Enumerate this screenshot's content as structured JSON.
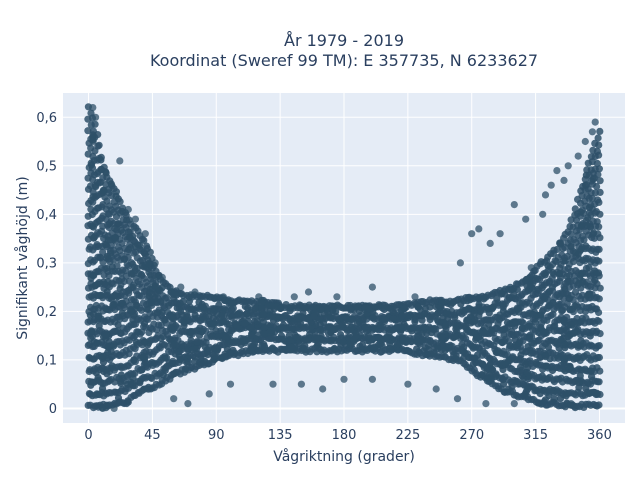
{
  "chart_data": {
    "type": "scatter",
    "title_line1": "År 1979 - 2019",
    "title_line2": "Koordinat (Sweref 99 TM): E 357735, N 6233627",
    "xlabel": "Vågriktning (grader)",
    "ylabel": "Signifikant våghöjd (m)",
    "xlim": [
      -18,
      378
    ],
    "ylim": [
      -0.03,
      0.65
    ],
    "x_ticks": [
      0,
      45,
      90,
      135,
      180,
      225,
      270,
      315,
      360
    ],
    "x_tick_labels": [
      "0",
      "45",
      "90",
      "135",
      "180",
      "225",
      "270",
      "315",
      "360"
    ],
    "y_ticks": [
      0,
      0.1,
      0.2,
      0.3,
      0.4,
      0.5,
      0.6
    ],
    "y_tick_labels": [
      "0",
      "0,1",
      "0,2",
      "0,3",
      "0,4",
      "0,5",
      "0,6"
    ],
    "grid": true,
    "marker_color": "#2e5068",
    "plot_bg": "#e5ecf6",
    "envelope": {
      "x": [
        0,
        5,
        10,
        15,
        20,
        25,
        30,
        35,
        40,
        45,
        50,
        55,
        60,
        70,
        80,
        90,
        100,
        120,
        140,
        160,
        180,
        200,
        220,
        240,
        260,
        270,
        280,
        290,
        300,
        310,
        320,
        330,
        340,
        345,
        350,
        355,
        360
      ],
      "upper": [
        0.62,
        0.58,
        0.5,
        0.47,
        0.44,
        0.41,
        0.38,
        0.36,
        0.34,
        0.31,
        0.27,
        0.25,
        0.24,
        0.23,
        0.23,
        0.23,
        0.22,
        0.22,
        0.21,
        0.21,
        0.21,
        0.21,
        0.21,
        0.22,
        0.22,
        0.23,
        0.23,
        0.24,
        0.25,
        0.27,
        0.3,
        0.33,
        0.38,
        0.43,
        0.48,
        0.53,
        0.57
      ],
      "lower": [
        0.005,
        0.005,
        0.005,
        0.005,
        0.01,
        0.01,
        0.02,
        0.03,
        0.04,
        0.04,
        0.05,
        0.06,
        0.07,
        0.08,
        0.09,
        0.1,
        0.11,
        0.12,
        0.12,
        0.12,
        0.12,
        0.12,
        0.12,
        0.11,
        0.1,
        0.08,
        0.06,
        0.04,
        0.03,
        0.02,
        0.01,
        0.01,
        0.005,
        0.005,
        0.005,
        0.005,
        0.005
      ]
    },
    "outliers": [
      {
        "x": 22,
        "y": 0.51
      },
      {
        "x": 28,
        "y": 0.41
      },
      {
        "x": 33,
        "y": 0.39
      },
      {
        "x": 40,
        "y": 0.36
      },
      {
        "x": 47,
        "y": 0.3
      },
      {
        "x": 52,
        "y": 0.27
      },
      {
        "x": 65,
        "y": 0.25
      },
      {
        "x": 75,
        "y": 0.24
      },
      {
        "x": 95,
        "y": 0.23
      },
      {
        "x": 120,
        "y": 0.23
      },
      {
        "x": 145,
        "y": 0.23
      },
      {
        "x": 155,
        "y": 0.24
      },
      {
        "x": 175,
        "y": 0.23
      },
      {
        "x": 200,
        "y": 0.25
      },
      {
        "x": 230,
        "y": 0.23
      },
      {
        "x": 262,
        "y": 0.3
      },
      {
        "x": 270,
        "y": 0.36
      },
      {
        "x": 275,
        "y": 0.37
      },
      {
        "x": 283,
        "y": 0.34
      },
      {
        "x": 290,
        "y": 0.36
      },
      {
        "x": 300,
        "y": 0.42
      },
      {
        "x": 308,
        "y": 0.39
      },
      {
        "x": 312,
        "y": 0.29
      },
      {
        "x": 320,
        "y": 0.4
      },
      {
        "x": 322,
        "y": 0.44
      },
      {
        "x": 326,
        "y": 0.46
      },
      {
        "x": 330,
        "y": 0.49
      },
      {
        "x": 335,
        "y": 0.47
      },
      {
        "x": 338,
        "y": 0.5
      },
      {
        "x": 345,
        "y": 0.52
      },
      {
        "x": 350,
        "y": 0.55
      },
      {
        "x": 355,
        "y": 0.57
      },
      {
        "x": 357,
        "y": 0.59
      },
      {
        "x": 5,
        "y": 0.6
      },
      {
        "x": 3,
        "y": 0.62
      },
      {
        "x": 10,
        "y": 0.0
      },
      {
        "x": 18,
        "y": 0.0
      },
      {
        "x": 60,
        "y": 0.02
      },
      {
        "x": 70,
        "y": 0.01
      },
      {
        "x": 85,
        "y": 0.03
      },
      {
        "x": 100,
        "y": 0.05
      },
      {
        "x": 130,
        "y": 0.05
      },
      {
        "x": 150,
        "y": 0.05
      },
      {
        "x": 165,
        "y": 0.04
      },
      {
        "x": 180,
        "y": 0.06
      },
      {
        "x": 200,
        "y": 0.06
      },
      {
        "x": 225,
        "y": 0.05
      },
      {
        "x": 245,
        "y": 0.04
      },
      {
        "x": 260,
        "y": 0.02
      },
      {
        "x": 280,
        "y": 0.01
      },
      {
        "x": 300,
        "y": 0.01
      },
      {
        "x": 320,
        "y": 0.01
      },
      {
        "x": 340,
        "y": 0.01
      }
    ]
  }
}
